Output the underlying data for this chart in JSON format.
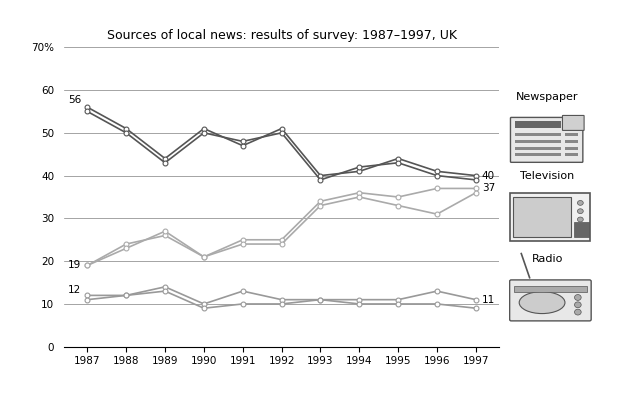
{
  "title": "Sources of local news: results of survey: 1987–1997, UK",
  "years": [
    1987,
    1988,
    1989,
    1990,
    1991,
    1992,
    1993,
    1994,
    1995,
    1996,
    1997
  ],
  "newspaper_1": [
    56,
    51,
    44,
    51,
    47,
    51,
    40,
    41,
    44,
    41,
    40
  ],
  "newspaper_2": [
    55,
    50,
    43,
    50,
    48,
    50,
    39,
    42,
    43,
    40,
    39
  ],
  "television_1": [
    19,
    24,
    26,
    21,
    25,
    25,
    34,
    36,
    35,
    37,
    37
  ],
  "television_2": [
    19,
    23,
    27,
    21,
    24,
    24,
    33,
    35,
    33,
    31,
    36
  ],
  "radio_1": [
    12,
    12,
    14,
    10,
    13,
    11,
    11,
    11,
    11,
    13,
    11
  ],
  "radio_2": [
    11,
    12,
    13,
    9,
    10,
    10,
    11,
    10,
    10,
    10,
    9
  ],
  "newspaper_color": "#555555",
  "television_color": "#aaaaaa",
  "radio_color": "#999999",
  "ylim": [
    0,
    70
  ],
  "yticks": [
    0,
    10,
    20,
    30,
    40,
    50,
    60,
    70
  ],
  "ytick_labels": [
    "0",
    "10",
    "20",
    "30",
    "40",
    "50",
    "60",
    "70%"
  ],
  "start_label_newspaper": "56",
  "start_label_television": "19",
  "start_label_radio": "12",
  "end_label_newspaper": "40",
  "end_label_television": "37",
  "end_label_radio": "11",
  "legend_order": [
    "Newspaper",
    "Television",
    "Radio"
  ]
}
